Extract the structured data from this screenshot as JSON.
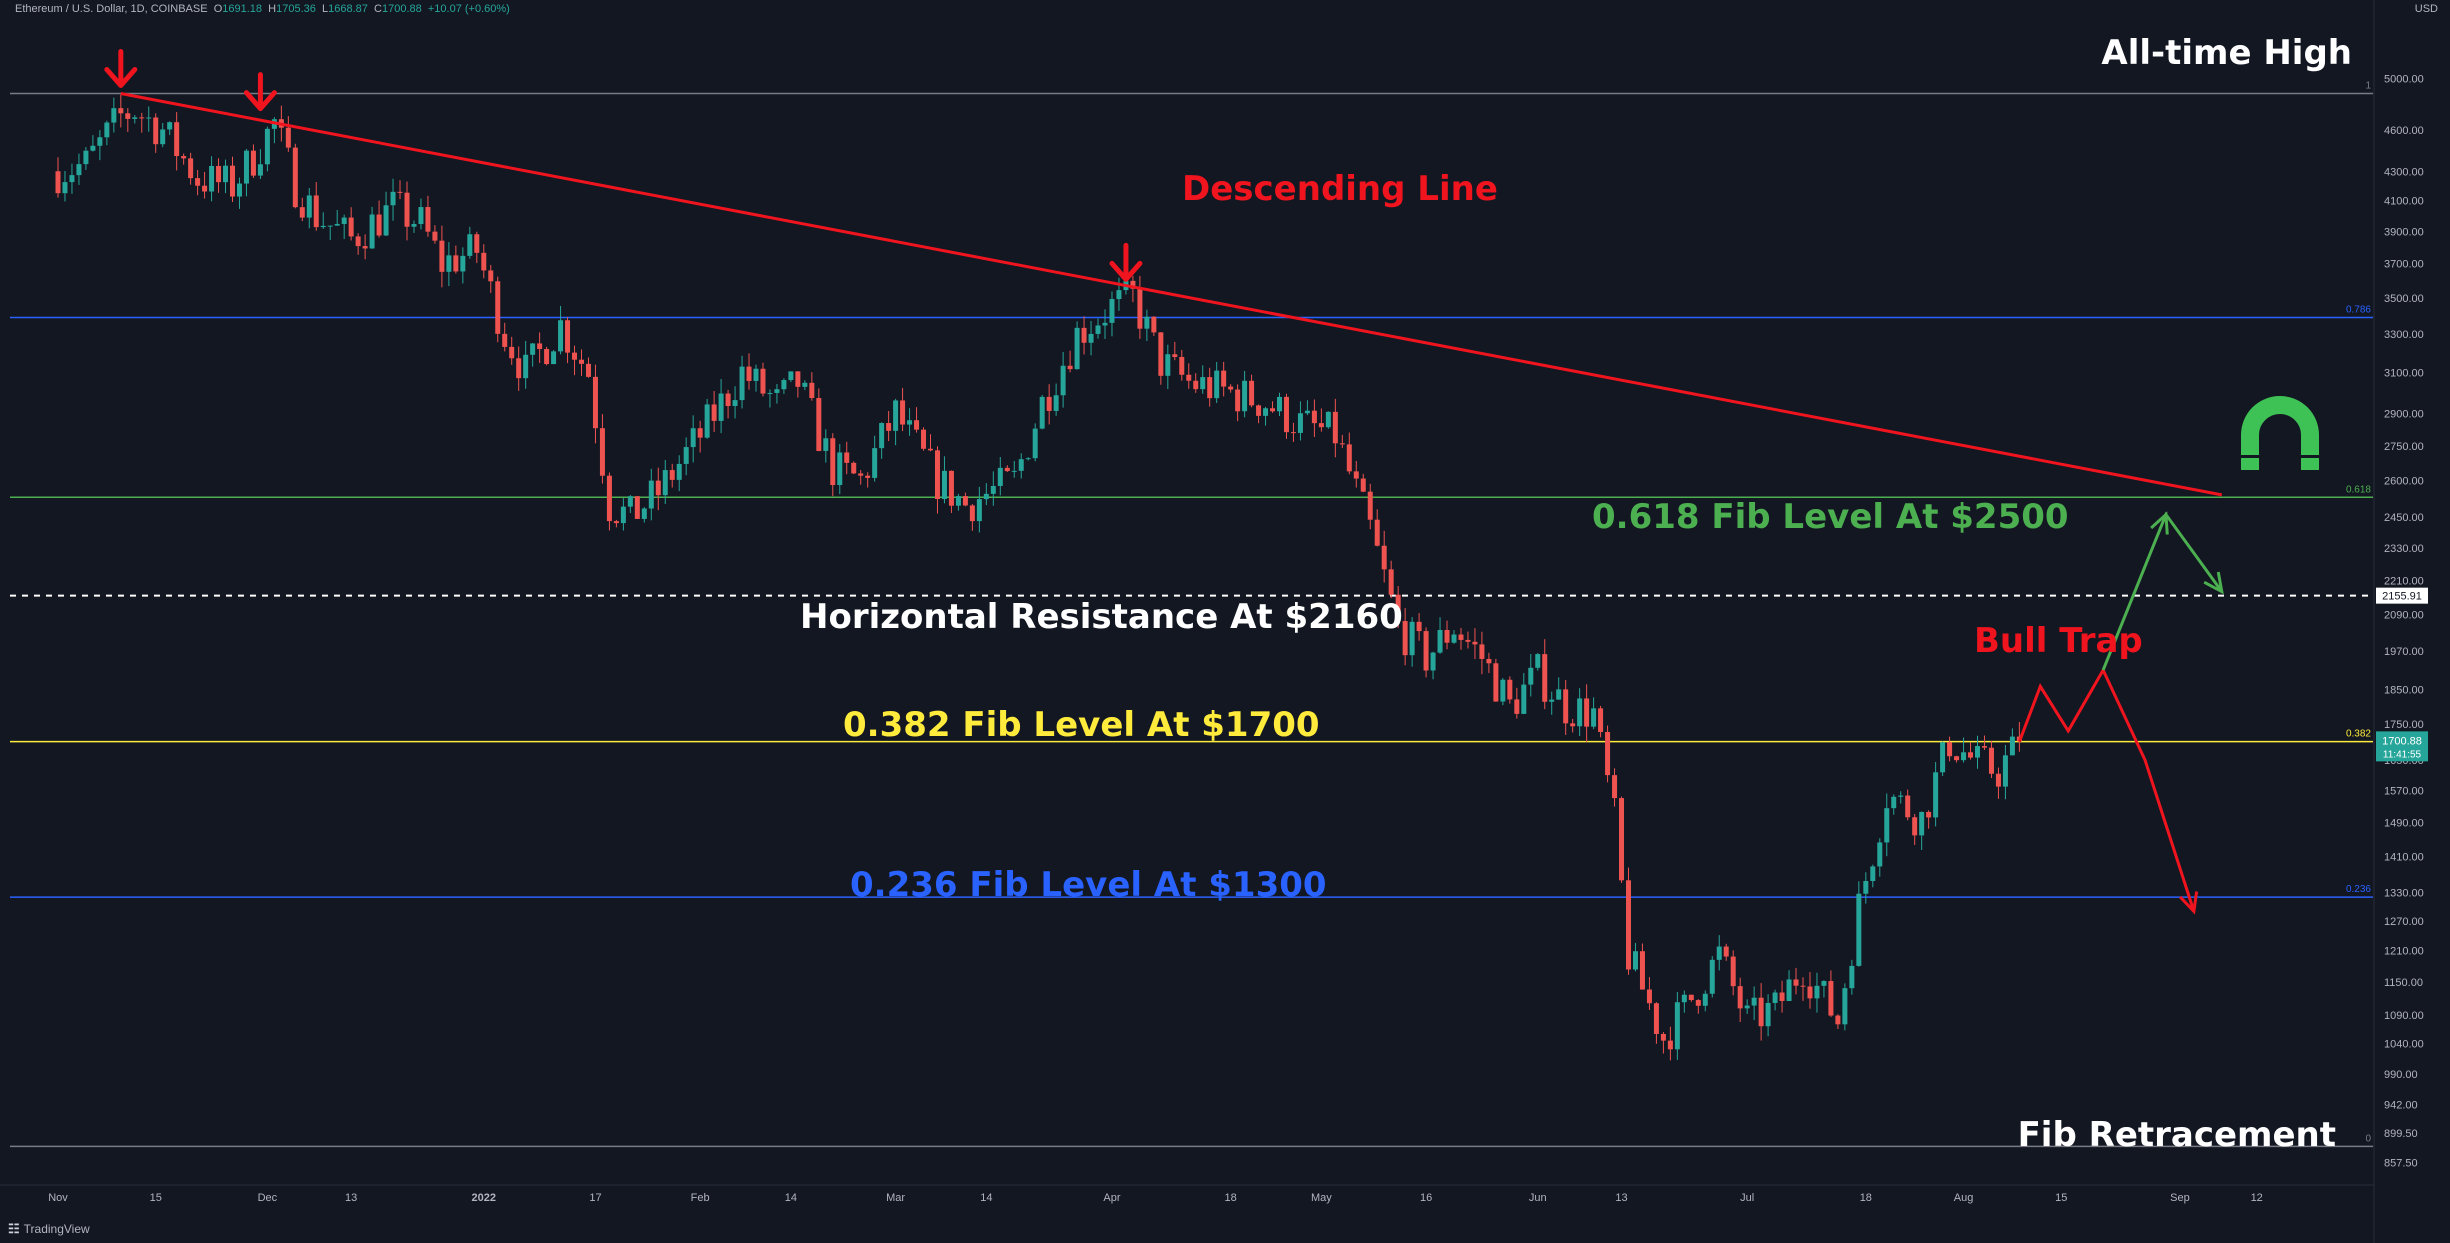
{
  "header": {
    "symbol": "Ethereum / U.S. Dollar, 1D, COINBASE",
    "open_label": "O",
    "open": "1691.18",
    "high_label": "H",
    "high": "1705.36",
    "low_label": "L",
    "low": "1668.87",
    "close_label": "C",
    "close": "1700.88",
    "change": "+10.07 (+0.60%)"
  },
  "currency": "USD",
  "footer": {
    "brand": "TradingView"
  },
  "colors": {
    "background": "#131722",
    "up": "#26a69a",
    "down": "#ef5350",
    "red_annotation": "#f0141e",
    "green_annotation": "#4caf50",
    "yellow": "#ffeb3b",
    "blue": "#2962ff",
    "white": "#ffffff"
  },
  "chart_data": {
    "type": "candlestick",
    "title": "Ethereum / U.S. Dollar, 1D, COINBASE",
    "y_scale": "log",
    "ylim": [
      840,
      5500
    ],
    "grid": false,
    "y_ticks": [
      "5000.00",
      "4600.00",
      "4300.00",
      "4100.00",
      "3900.00",
      "3700.00",
      "3500.00",
      "3300.00",
      "3100.00",
      "2900.00",
      "2750.00",
      "2600.00",
      "2450.00",
      "2330.00",
      "2210.00",
      "2090.00",
      "1970.00",
      "1850.00",
      "1750.00",
      "1650.00",
      "1570.00",
      "1490.00",
      "1410.00",
      "1330.00",
      "1270.00",
      "1210.00",
      "1150.00",
      "1090.00",
      "1040.00",
      "990.00",
      "942.00",
      "899.50",
      "857.50"
    ],
    "x_ticks": [
      {
        "label": "Nov",
        "day": 0
      },
      {
        "label": "15",
        "day": 14
      },
      {
        "label": "Dec",
        "day": 30
      },
      {
        "label": "13",
        "day": 42
      },
      {
        "label": "2022",
        "day": 61
      },
      {
        "label": "17",
        "day": 77
      },
      {
        "label": "Feb",
        "day": 92
      },
      {
        "label": "14",
        "day": 105
      },
      {
        "label": "Mar",
        "day": 120
      },
      {
        "label": "14",
        "day": 133
      },
      {
        "label": "Apr",
        "day": 151
      },
      {
        "label": "18",
        "day": 168
      },
      {
        "label": "May",
        "day": 181
      },
      {
        "label": "16",
        "day": 196
      },
      {
        "label": "Jun",
        "day": 212
      },
      {
        "label": "13",
        "day": 224
      },
      {
        "label": "Jul",
        "day": 242
      },
      {
        "label": "18",
        "day": 259
      },
      {
        "label": "Aug",
        "day": 273
      },
      {
        "label": "15",
        "day": 287
      },
      {
        "label": "Sep",
        "day": 304
      },
      {
        "label": "12",
        "day": 315
      }
    ],
    "fib_levels": [
      {
        "ratio": "1",
        "price": 4880,
        "color": "#787b86"
      },
      {
        "ratio": "0.786",
        "price": 3390,
        "color": "#2962ff"
      },
      {
        "ratio": "0.618",
        "price": 2530,
        "color": "#4caf50"
      },
      {
        "ratio": "0.382",
        "price": 1700,
        "color": "#ffeb3b"
      },
      {
        "ratio": "0.236",
        "price": 1320,
        "color": "#2962ff"
      },
      {
        "ratio": "0",
        "price": 880,
        "color": "#787b86"
      }
    ],
    "horizontal_resistance": {
      "price": 2155.91,
      "label": "2155.91"
    },
    "price_tag": {
      "price": 1700.88,
      "label": "1700.88",
      "countdown": "11:41:55"
    },
    "anchors": [
      {
        "day": 0,
        "price": 4300
      },
      {
        "day": 4,
        "price": 4350
      },
      {
        "day": 9,
        "price": 4700
      },
      {
        "day": 11,
        "price": 4750
      },
      {
        "day": 15,
        "price": 4600
      },
      {
        "day": 20,
        "price": 4250
      },
      {
        "day": 25,
        "price": 4200
      },
      {
        "day": 28,
        "price": 4400
      },
      {
        "day": 31,
        "price": 4650
      },
      {
        "day": 34,
        "price": 4200
      },
      {
        "day": 37,
        "price": 4000
      },
      {
        "day": 42,
        "price": 3850
      },
      {
        "day": 48,
        "price": 4050
      },
      {
        "day": 52,
        "price": 3950
      },
      {
        "day": 55,
        "price": 3700
      },
      {
        "day": 60,
        "price": 3780
      },
      {
        "day": 64,
        "price": 3300
      },
      {
        "day": 67,
        "price": 3100
      },
      {
        "day": 72,
        "price": 3350
      },
      {
        "day": 76,
        "price": 3100
      },
      {
        "day": 79,
        "price": 2500
      },
      {
        "day": 82,
        "price": 2450
      },
      {
        "day": 86,
        "price": 2550
      },
      {
        "day": 92,
        "price": 2800
      },
      {
        "day": 98,
        "price": 3100
      },
      {
        "day": 103,
        "price": 2950
      },
      {
        "day": 106,
        "price": 3050
      },
      {
        "day": 111,
        "price": 2650
      },
      {
        "day": 115,
        "price": 2600
      },
      {
        "day": 120,
        "price": 2900
      },
      {
        "day": 126,
        "price": 2600
      },
      {
        "day": 130,
        "price": 2500
      },
      {
        "day": 137,
        "price": 2600
      },
      {
        "day": 141,
        "price": 2950
      },
      {
        "day": 146,
        "price": 3300
      },
      {
        "day": 151,
        "price": 3450
      },
      {
        "day": 154,
        "price": 3500
      },
      {
        "day": 158,
        "price": 3150
      },
      {
        "day": 162,
        "price": 3050
      },
      {
        "day": 168,
        "price": 3000
      },
      {
        "day": 173,
        "price": 2950
      },
      {
        "day": 178,
        "price": 2850
      },
      {
        "day": 183,
        "price": 2800
      },
      {
        "day": 188,
        "price": 2400
      },
      {
        "day": 192,
        "price": 2050
      },
      {
        "day": 196,
        "price": 1950
      },
      {
        "day": 200,
        "price": 2050
      },
      {
        "day": 204,
        "price": 1950
      },
      {
        "day": 208,
        "price": 1800
      },
      {
        "day": 212,
        "price": 1900
      },
      {
        "day": 216,
        "price": 1800
      },
      {
        "day": 220,
        "price": 1780
      },
      {
        "day": 223,
        "price": 1500
      },
      {
        "day": 225,
        "price": 1200
      },
      {
        "day": 230,
        "price": 1050
      },
      {
        "day": 233,
        "price": 1100
      },
      {
        "day": 238,
        "price": 1200
      },
      {
        "day": 242,
        "price": 1080
      },
      {
        "day": 246,
        "price": 1100
      },
      {
        "day": 250,
        "price": 1180
      },
      {
        "day": 255,
        "price": 1080
      },
      {
        "day": 258,
        "price": 1300
      },
      {
        "day": 262,
        "price": 1560
      },
      {
        "day": 267,
        "price": 1500
      },
      {
        "day": 271,
        "price": 1700
      },
      {
        "day": 275,
        "price": 1640
      },
      {
        "day": 278,
        "price": 1620
      },
      {
        "day": 281,
        "price": 1700
      }
    ],
    "annotations": {
      "ath": "All-time High",
      "descending": "Descending Line",
      "fib618": "0.618 Fib Level At $2500",
      "resistance": "Horizontal Resistance At $2160",
      "bulltrap": "Bull Trap",
      "fib382": "0.382 Fib Level At $1700",
      "fib236": "0.236 Fib Level At $1300",
      "fibretr": "Fib Retracement"
    },
    "descending_line": {
      "from": {
        "day": 9,
        "price": 4880
      },
      "to": {
        "day": 310,
        "price": 2540
      }
    },
    "bull_trap_path": [
      {
        "day": 281,
        "price": 1700
      },
      {
        "day": 284,
        "price": 1860
      },
      {
        "day": 288,
        "price": 1730
      },
      {
        "day": 293,
        "price": 1910
      },
      {
        "day": 299,
        "price": 1650
      },
      {
        "day": 306,
        "price": 1290
      }
    ],
    "bullish_path": [
      {
        "day": 293,
        "price": 1910
      },
      {
        "day": 302,
        "price": 2460
      },
      {
        "day": 310,
        "price": 2170
      }
    ],
    "markers": [
      {
        "day": 9,
        "price": 4880
      },
      {
        "day": 29,
        "price": 4700
      },
      {
        "day": 153,
        "price": 3560
      }
    ]
  }
}
